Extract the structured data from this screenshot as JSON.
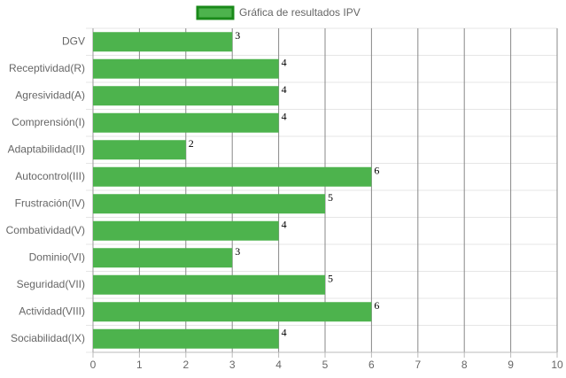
{
  "chart_data": {
    "type": "bar",
    "orientation": "horizontal",
    "categories": [
      "DGV",
      "Receptividad(R)",
      "Agresividad(A)",
      "Comprensión(I)",
      "Adaptabilidad(II)",
      "Autocontrol(III)",
      "Frustración(IV)",
      "Combatividad(V)",
      "Dominio(VI)",
      "Seguridad(VII)",
      "Actividad(VIII)",
      "Sociabilidad(IX)"
    ],
    "series": [
      {
        "name": "Gráfica de resultados IPV",
        "color": "#4db34d",
        "border_color": "#1a8a1a",
        "values": [
          3,
          4,
          4,
          4,
          2,
          6,
          5,
          4,
          3,
          5,
          6,
          4
        ]
      }
    ],
    "xlim": [
      0,
      10
    ],
    "xticks": [
      0,
      1,
      2,
      3,
      4,
      5,
      6,
      7,
      8,
      9,
      10
    ],
    "grid": true,
    "legend": "top"
  }
}
